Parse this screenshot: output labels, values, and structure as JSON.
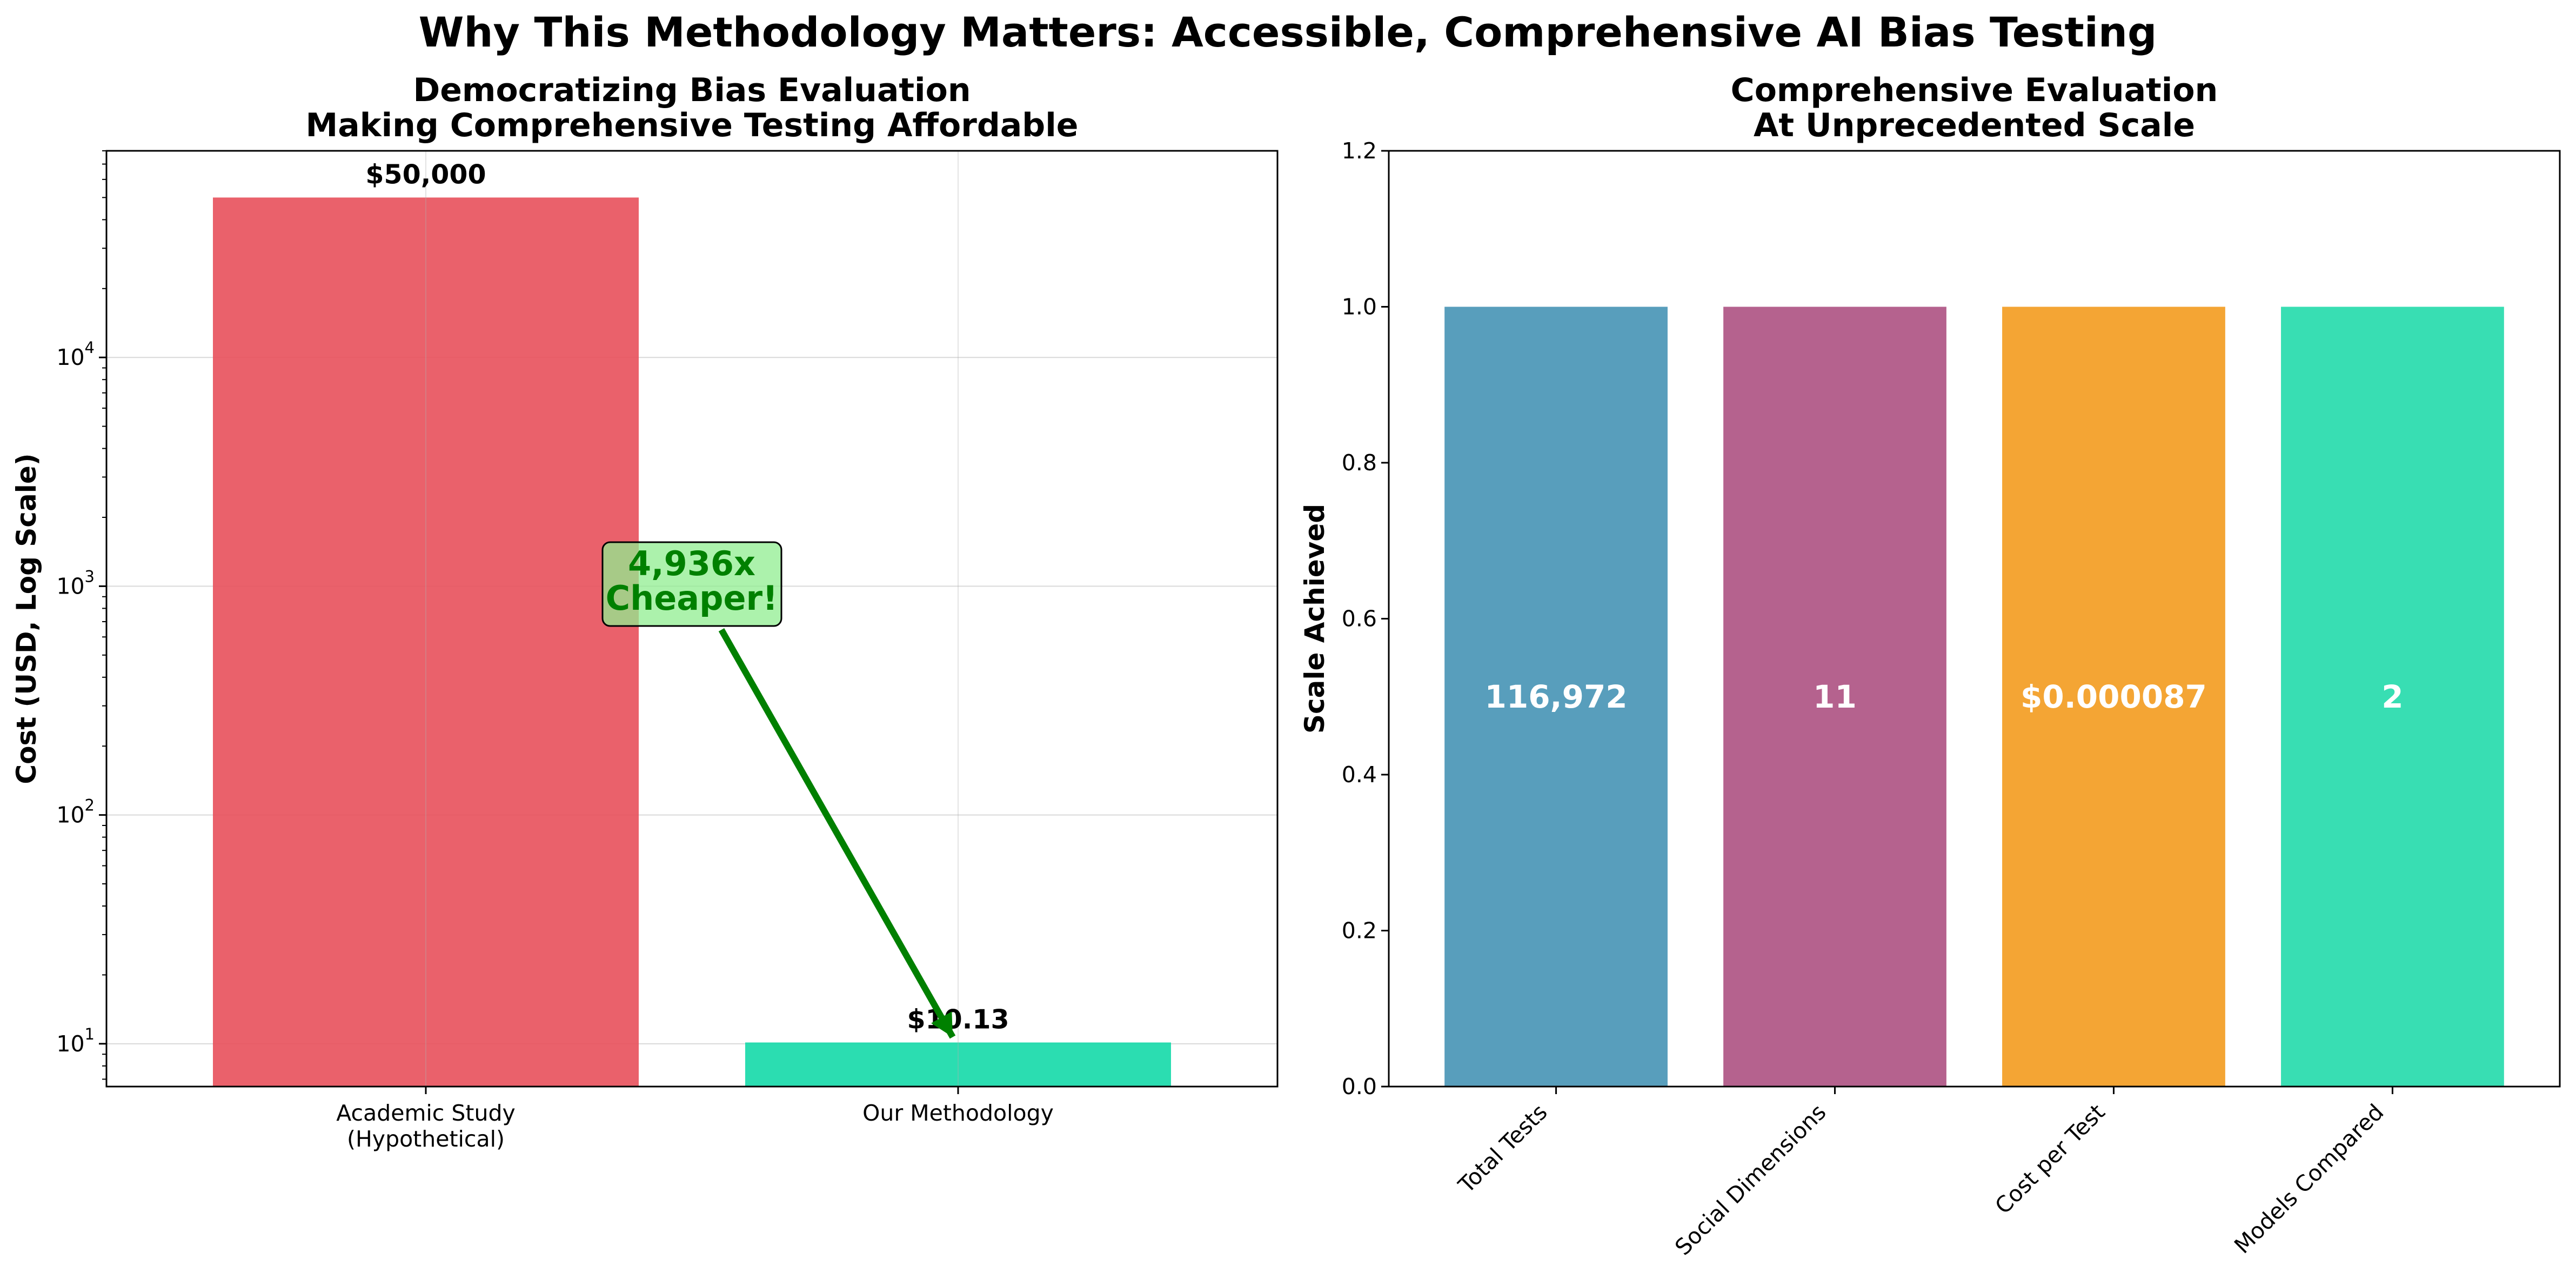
{
  "figure": {
    "title": "Why This Methodology Matters: Accessible, Comprehensive AI Bias Testing"
  },
  "chart_data": [
    {
      "type": "bar",
      "title": [
        "Democratizing Bias Evaluation",
        "Making Comprehensive Testing Affordable"
      ],
      "xlabel": "",
      "ylabel": "Cost (USD, Log Scale)",
      "yscale": "log",
      "ylim": [
        6.5,
        80000
      ],
      "grid": true,
      "categories": [
        [
          "Academic Study",
          "(Hypothetical)"
        ],
        [
          "Our Methodology"
        ]
      ],
      "values": [
        50000,
        10.13
      ],
      "value_labels": [
        "$50,000",
        "$10.13"
      ],
      "colors": [
        "#e8505b",
        "#14d9a8"
      ],
      "yticks": [
        {
          "value": 10,
          "base": "10",
          "exp": "1"
        },
        {
          "value": 100,
          "base": "10",
          "exp": "2"
        },
        {
          "value": 1000,
          "base": "10",
          "exp": "3"
        },
        {
          "value": 10000,
          "base": "10",
          "exp": "4"
        }
      ],
      "annotation": {
        "text": [
          "4,936x",
          "Cheaper!"
        ],
        "color": "#008000",
        "box_color": "#90ee90",
        "points_to": {
          "category_index": 1,
          "value": 10.13
        }
      }
    },
    {
      "type": "bar",
      "title": [
        "Comprehensive Evaluation",
        "At Unprecedented Scale"
      ],
      "xlabel": "",
      "ylabel": "Scale Achieved",
      "ylim": [
        0,
        1.2
      ],
      "grid": false,
      "categories": [
        "Total Tests",
        "Social Dimensions",
        "Cost per Test",
        "Models Compared"
      ],
      "values": [
        1,
        1,
        1,
        1
      ],
      "value_labels": [
        "116,972",
        "11",
        "$0.000087",
        "2"
      ],
      "colors": [
        "#2e86ab",
        "#a23b72",
        "#f18f01",
        "#06d6a0"
      ],
      "yticks": [
        "0.0",
        "0.2",
        "0.4",
        "0.6",
        "0.8",
        "1.0",
        "1.2"
      ]
    }
  ]
}
